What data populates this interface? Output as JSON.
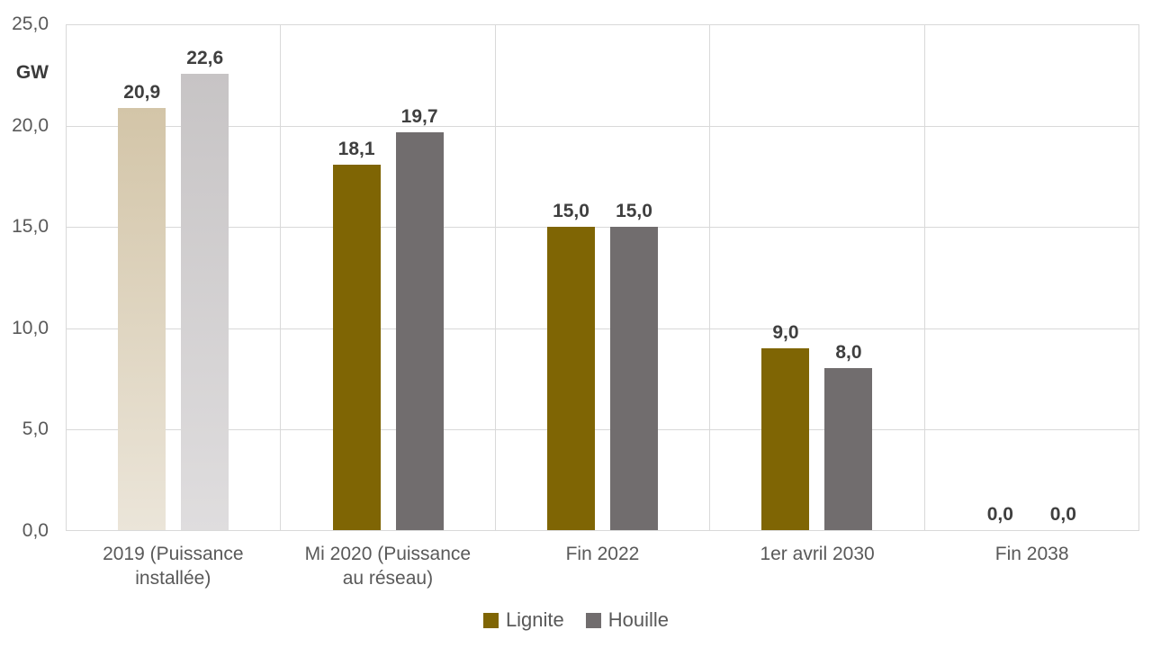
{
  "chart_data": {
    "type": "bar",
    "title": "",
    "y_axis_unit": "GW",
    "ylim": [
      0,
      25
    ],
    "y_ticks": [
      "25,0",
      "20,0",
      "15,0",
      "10,0",
      "5,0",
      "0,0"
    ],
    "grid": true,
    "legend_position": "bottom",
    "categories": [
      "2019 (Puissance installée)",
      "Mi 2020 (Puissance au réseau)",
      "Fin 2022",
      "1er avril 2030",
      "Fin 2038"
    ],
    "series": [
      {
        "name": "Lignite",
        "color": "#7F6504",
        "values": [
          20.9,
          18.1,
          15.0,
          9.0,
          0.0
        ],
        "labels": [
          "20,9",
          "18,1",
          "15,0",
          "9,0",
          "0,0"
        ],
        "first_category_gradient": [
          "#D3C5A8",
          "#EBE5D9"
        ]
      },
      {
        "name": "Houille",
        "color": "#716D6E",
        "values": [
          22.6,
          19.7,
          15.0,
          8.0,
          0.0
        ],
        "labels": [
          "22,6",
          "19,7",
          "15,0",
          "8,0",
          "0,0"
        ],
        "first_category_gradient": [
          "#C7C4C5",
          "#DFDDDE"
        ]
      }
    ],
    "colors": {
      "grid": "#D9D9D9",
      "tick_text": "#595959",
      "value_label": "#3F3F3F",
      "category_text": "#595959",
      "legend_text": "#595959"
    }
  }
}
